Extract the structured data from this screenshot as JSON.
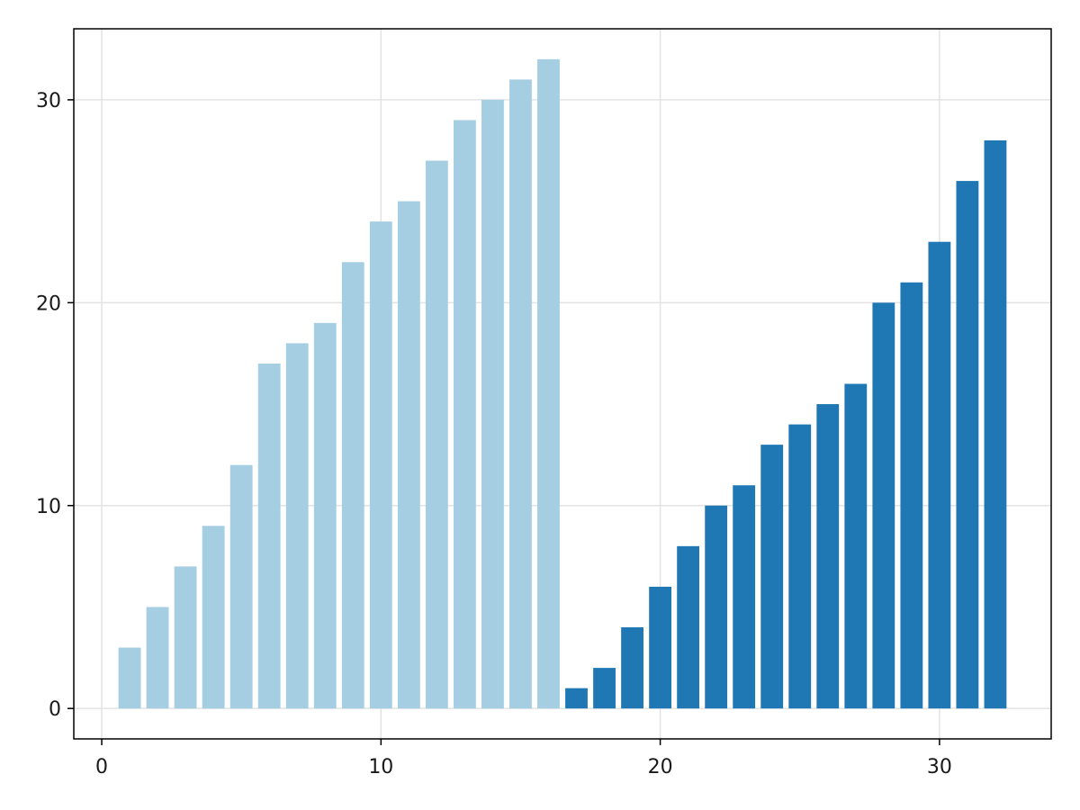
{
  "chart_data": {
    "type": "bar",
    "title": "",
    "xlabel": "",
    "ylabel": "",
    "xlim": [
      -1,
      34
    ],
    "ylim": [
      -1.5,
      33.5
    ],
    "x_ticks": [
      0,
      10,
      20,
      30
    ],
    "y_ticks": [
      0,
      10,
      20,
      30
    ],
    "x_tick_labels": [
      "0",
      "10",
      "20",
      "30"
    ],
    "y_tick_labels": [
      "0",
      "10",
      "20",
      "30"
    ],
    "grid": true,
    "legend": "none",
    "series": [
      {
        "color": "#a6cee3",
        "x": [
          1,
          2,
          3,
          4,
          5,
          6,
          7,
          8,
          9,
          10,
          11,
          12,
          13,
          14,
          15,
          16
        ],
        "values": [
          3,
          5,
          7,
          9,
          12,
          17,
          18,
          19,
          22,
          24,
          25,
          27,
          29,
          30,
          31,
          32
        ]
      },
      {
        "color": "#1f78b4",
        "x": [
          17,
          18,
          19,
          20,
          21,
          22,
          23,
          24,
          25,
          26,
          27,
          28,
          29,
          30,
          31,
          32
        ],
        "values": [
          1,
          2,
          4,
          6,
          8,
          10,
          11,
          13,
          14,
          15,
          16,
          20,
          21,
          23,
          26,
          28
        ]
      }
    ]
  }
}
